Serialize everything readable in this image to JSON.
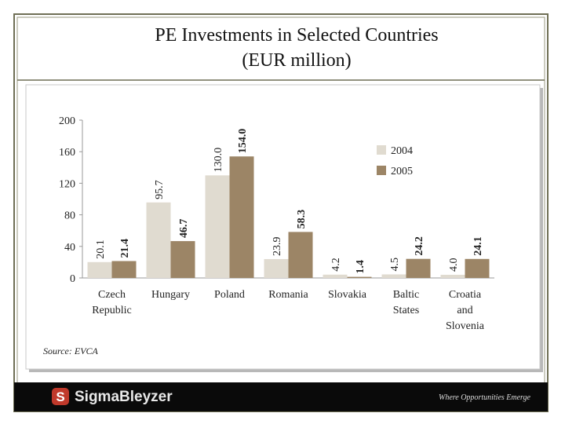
{
  "chart_data": {
    "type": "bar",
    "title": "PE Investments in Selected Countries",
    "subtitle": "(EUR million)",
    "categories": [
      "Czech Republic",
      "Hungary",
      "Poland",
      "Romania",
      "Slovakia",
      "Baltic States",
      "Croatia and Slovenia"
    ],
    "series": [
      {
        "name": "2004",
        "color": "#e0dbd0",
        "values": [
          20.1,
          95.7,
          130.0,
          23.9,
          4.2,
          4.5,
          4.0
        ],
        "value_labels": [
          "20.1",
          "95.7",
          "130.0",
          "23.9",
          "4.2",
          "4.5",
          "4.0"
        ]
      },
      {
        "name": "2005",
        "color": "#9c8566",
        "values": [
          21.4,
          46.7,
          154.0,
          58.3,
          1.4,
          24.2,
          24.1
        ],
        "value_labels": [
          "21.4",
          "46.7",
          "154.0",
          "58.3",
          "1.4",
          "24.2",
          "24.1"
        ]
      }
    ],
    "ylim": [
      0,
      200
    ],
    "yticks": [
      0,
      40,
      80,
      120,
      160,
      200
    ],
    "grid": false,
    "legend": "upper right",
    "source": "Source: EVCA"
  },
  "footer": {
    "brand": "SigmaBleyzer",
    "tagline": "Where Opportunities Emerge"
  }
}
